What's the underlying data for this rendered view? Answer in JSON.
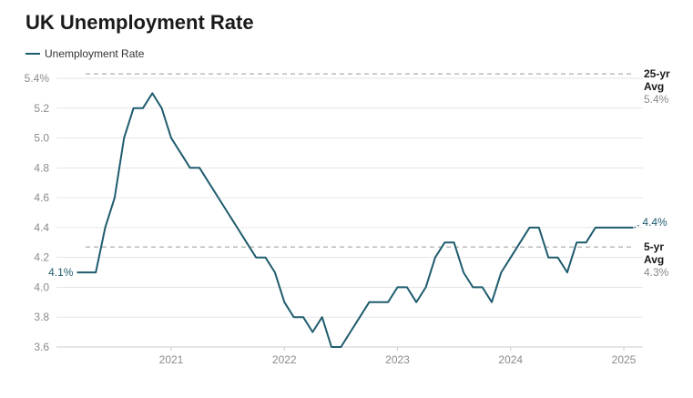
{
  "chart_data": {
    "type": "line",
    "title": "UK Unemployment Rate",
    "xlabel": "",
    "ylabel": "",
    "ylim": [
      3.6,
      5.4
    ],
    "y_ticks": [
      "3.6",
      "3.8",
      "4.0",
      "4.2",
      "4.4",
      "4.6",
      "4.8",
      "5.0",
      "5.2",
      "5.4%"
    ],
    "x_ticks": [
      "2021",
      "2022",
      "2023",
      "2024",
      "2025"
    ],
    "grid": true,
    "legend_position": "top-left",
    "colors": {
      "series": "#1f5c6e",
      "reference": "#bbbbbb"
    },
    "series": [
      {
        "name": "Unemployment Rate",
        "x": [
          "2020-03",
          "2020-04",
          "2020-05",
          "2020-06",
          "2020-07",
          "2020-08",
          "2020-09",
          "2020-10",
          "2020-11",
          "2020-12",
          "2021-01",
          "2021-02",
          "2021-03",
          "2021-04",
          "2021-05",
          "2021-06",
          "2021-07",
          "2021-08",
          "2021-09",
          "2021-10",
          "2021-11",
          "2021-12",
          "2022-01",
          "2022-02",
          "2022-03",
          "2022-04",
          "2022-05",
          "2022-06",
          "2022-07",
          "2022-08",
          "2022-09",
          "2022-10",
          "2022-11",
          "2022-12",
          "2023-01",
          "2023-02",
          "2023-03",
          "2023-04",
          "2023-05",
          "2023-06",
          "2023-07",
          "2023-08",
          "2023-09",
          "2023-10",
          "2023-11",
          "2023-12",
          "2024-01",
          "2024-02",
          "2024-03",
          "2024-04",
          "2024-05",
          "2024-06",
          "2024-07",
          "2024-08",
          "2024-09",
          "2024-10",
          "2024-11",
          "2024-12",
          "2025-01",
          "2025-02"
        ],
        "values": [
          4.1,
          4.1,
          4.1,
          4.4,
          4.6,
          5.0,
          5.2,
          5.2,
          5.3,
          5.2,
          5.0,
          4.9,
          4.8,
          4.8,
          4.7,
          4.6,
          4.5,
          4.4,
          4.3,
          4.2,
          4.2,
          4.1,
          3.9,
          3.8,
          3.8,
          3.7,
          3.8,
          3.6,
          3.6,
          3.7,
          3.8,
          3.9,
          3.9,
          3.9,
          4.0,
          4.0,
          3.9,
          4.0,
          4.2,
          4.3,
          4.3,
          4.1,
          4.0,
          4.0,
          3.9,
          4.1,
          4.2,
          4.3,
          4.4,
          4.4,
          4.2,
          4.2,
          4.1,
          4.3,
          4.3,
          4.4,
          4.4,
          4.4,
          4.4,
          4.4
        ],
        "start_label": "4.1%",
        "end_label": "4.4%"
      }
    ],
    "reference_lines": [
      {
        "title_line1": "25-yr",
        "title_line2": "Avg",
        "value": 5.43,
        "value_label": "5.4%"
      },
      {
        "title_line1": "5-yr",
        "title_line2": "Avg",
        "value": 4.27,
        "value_label": "4.3%"
      }
    ]
  }
}
